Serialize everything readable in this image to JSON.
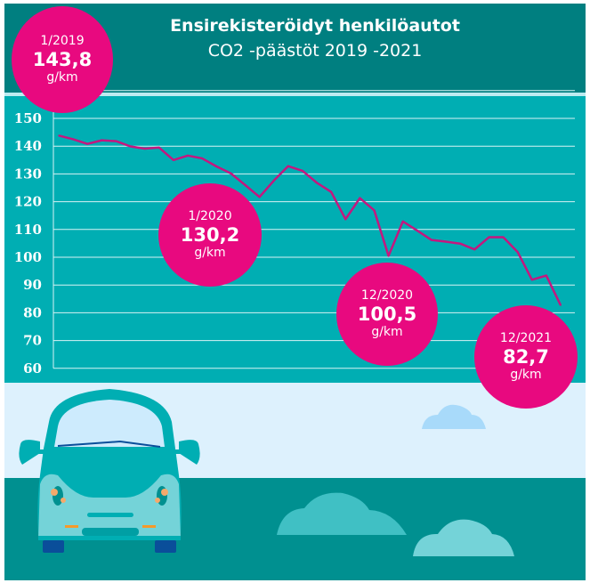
{
  "title": "Ensirekisteröidyt henkilöautot",
  "subtitle": "CO2 -päästöt 2019 -2021",
  "colors": {
    "header": "#007F80",
    "plot": "#00AEB3",
    "line": "#C4177F",
    "bubble": "#E8097F",
    "sky": "#DDF1FD",
    "ground": "#009090"
  },
  "chart_data": {
    "type": "line",
    "title": "Ensirekisteröidyt henkilöautot",
    "subtitle": "CO2 -päästöt 2019 -2021",
    "ylim": [
      60,
      160
    ],
    "yticks": [
      "60",
      "70",
      "80",
      "90",
      "100",
      "110",
      "120",
      "130",
      "140",
      "150"
    ],
    "grid": true,
    "x_range": "1/2019 – 12/2021 (monthly)",
    "values": [
      143.8,
      142.5,
      140.8,
      142.1,
      141.8,
      139.9,
      139.1,
      139.5,
      135.0,
      136.6,
      135.6,
      132.7,
      130.2,
      126.0,
      121.7,
      127.6,
      132.8,
      131.1,
      126.8,
      123.5,
      113.7,
      121.3,
      116.9,
      100.5,
      112.9,
      109.6,
      106.2,
      105.6,
      104.9,
      102.8,
      107.2,
      107.2,
      101.9,
      91.9,
      93.4,
      82.7
    ],
    "annotations": [
      {
        "date": "1/2019",
        "value": "143,8",
        "unit": "g/km"
      },
      {
        "date": "1/2020",
        "value": "130,2",
        "unit": "g/km"
      },
      {
        "date": "12/2020",
        "value": "100,5",
        "unit": "g/km"
      },
      {
        "date": "12/2021",
        "value": "82,7",
        "unit": "g/km"
      }
    ]
  }
}
